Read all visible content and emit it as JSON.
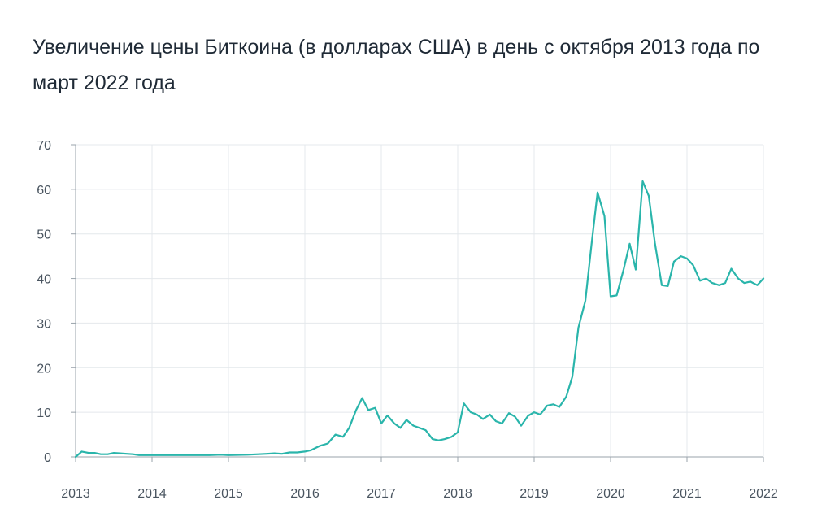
{
  "chart_data": {
    "type": "line",
    "title": "Увеличение цены Биткоина (в долларах США) в день с октября 2013 года по март 2022 года",
    "xlabel": "",
    "ylabel": "",
    "xlim": [
      2013,
      2022
    ],
    "ylim": [
      0,
      70
    ],
    "x_ticks": [
      "2013",
      "2014",
      "2015",
      "2016",
      "2017",
      "2018",
      "2019",
      "2020",
      "2021",
      "2022"
    ],
    "y_ticks": [
      "0",
      "10",
      "20",
      "30",
      "40",
      "50",
      "60",
      "70"
    ],
    "grid": true,
    "line_color": "#2ab5ab",
    "series": [
      {
        "x": [
          2013.0,
          2013.08,
          2013.17,
          2013.25,
          2013.33,
          2013.42,
          2013.5,
          2013.58,
          2013.67,
          2013.75,
          2013.83,
          2013.92,
          2014.0,
          2014.25,
          2014.5,
          2014.75,
          2014.9,
          2015.0,
          2015.25,
          2015.5,
          2015.6,
          2015.7,
          2015.8,
          2015.9,
          2016.0,
          2016.08,
          2016.2,
          2016.3,
          2016.4,
          2016.5,
          2016.58,
          2016.67,
          2016.75,
          2016.83,
          2016.92,
          2017.0,
          2017.08,
          2017.17,
          2017.25,
          2017.33,
          2017.42,
          2017.5,
          2017.58,
          2017.67,
          2017.75,
          2017.83,
          2017.92,
          2018.0,
          2018.08,
          2018.17,
          2018.25,
          2018.33,
          2018.42,
          2018.5,
          2018.58,
          2018.67,
          2018.75,
          2018.83,
          2018.92,
          2019.0,
          2019.08,
          2019.17,
          2019.25,
          2019.33,
          2019.42,
          2019.5,
          2019.58,
          2019.67,
          2019.75,
          2019.83,
          2019.92,
          2020.0,
          2020.08,
          2020.17,
          2020.25,
          2020.33,
          2020.42,
          2020.5,
          2020.58,
          2020.67,
          2020.75,
          2020.83,
          2020.92,
          2021.0,
          2021.08,
          2021.17,
          2021.25,
          2021.33,
          2021.42,
          2021.5,
          2021.58,
          2021.67,
          2021.75,
          2021.83,
          2021.92,
          2022.0
        ],
        "y": [
          0.0,
          1.2,
          0.9,
          0.9,
          0.6,
          0.6,
          0.9,
          0.8,
          0.7,
          0.6,
          0.4,
          0.4,
          0.4,
          0.4,
          0.4,
          0.4,
          0.5,
          0.4,
          0.5,
          0.7,
          0.8,
          0.7,
          1.0,
          1.0,
          1.2,
          1.5,
          2.5,
          3.0,
          5.0,
          4.5,
          6.5,
          10.5,
          13.2,
          10.5,
          11.0,
          7.5,
          9.3,
          7.5,
          6.5,
          8.3,
          7.0,
          6.5,
          6.0,
          4.0,
          3.7,
          4.0,
          4.5,
          5.5,
          12.0,
          10.0,
          9.5,
          8.5,
          9.5,
          8.0,
          7.5,
          9.8,
          9.0,
          7.0,
          9.2,
          10.0,
          9.5,
          11.5,
          11.8,
          11.2,
          13.5,
          18.0,
          29.0,
          35.0,
          47.5,
          59.3,
          54.0,
          36.0,
          36.2,
          42.0,
          47.8,
          42.0,
          61.8,
          58.5,
          48.0,
          38.5,
          38.3,
          43.8,
          45.0,
          44.5,
          43.0,
          39.5,
          40.0,
          39.0,
          38.5,
          39.0,
          42.2,
          40.0,
          39.0,
          39.3,
          38.5,
          40.0
        ]
      }
    ]
  }
}
